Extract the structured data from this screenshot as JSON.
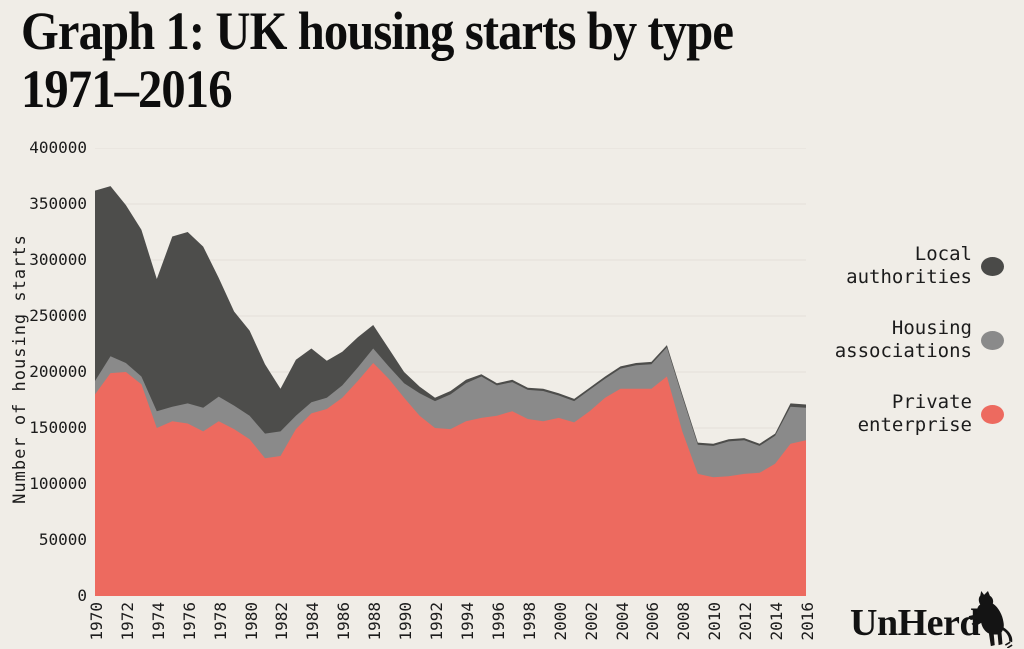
{
  "title": {
    "line1": "Graph 1: UK housing starts by type",
    "line2": "1971–2016"
  },
  "y_axis": {
    "label": "Number of housing starts",
    "ticks": [
      0,
      50000,
      100000,
      150000,
      200000,
      250000,
      300000,
      350000,
      400000
    ],
    "max": 400000
  },
  "x_axis": {
    "tick_years": [
      1970,
      1972,
      1974,
      1976,
      1978,
      1980,
      1982,
      1984,
      1986,
      1988,
      1990,
      1992,
      1994,
      1996,
      1998,
      2000,
      2002,
      2004,
      2006,
      2008,
      2010,
      2012,
      2014,
      2016
    ]
  },
  "legend": [
    {
      "line1": "Local",
      "line2": "authorities",
      "color": "#4a4a48"
    },
    {
      "line1": "Housing",
      "line2": "associations",
      "color": "#8a8a8a"
    },
    {
      "line1": "Private",
      "line2": "enterprise",
      "color": "#ed6a5f"
    }
  ],
  "logo": {
    "text": "UnHerd"
  },
  "colors": {
    "background": "#f0ede7",
    "gridline": "#e7e4dd",
    "local_authorities": "#4d4d4b",
    "housing_associations": "#8a8a8a",
    "private_enterprise": "#ed6a5f"
  },
  "chart_data": {
    "type": "area",
    "stacked": true,
    "title": "Graph 1: UK housing starts by type 1971–2016",
    "xlabel": "",
    "ylabel": "Number of housing starts",
    "ylim": [
      0,
      400000
    ],
    "grid": true,
    "legend_position": "right",
    "x": [
      1970,
      1971,
      1972,
      1973,
      1974,
      1975,
      1976,
      1977,
      1978,
      1979,
      1980,
      1981,
      1982,
      1983,
      1984,
      1985,
      1986,
      1987,
      1988,
      1989,
      1990,
      1991,
      1992,
      1993,
      1994,
      1995,
      1996,
      1997,
      1998,
      1999,
      2000,
      2001,
      2002,
      2003,
      2004,
      2005,
      2006,
      2007,
      2008,
      2009,
      2010,
      2011,
      2012,
      2013,
      2014,
      2015,
      2016
    ],
    "series": [
      {
        "name": "Private enterprise",
        "color": "#ed6a5f",
        "values": [
          180000,
          199000,
          200000,
          189000,
          150000,
          156000,
          154000,
          147000,
          156000,
          149000,
          140000,
          123000,
          125000,
          149000,
          163000,
          167000,
          177000,
          192000,
          208000,
          194000,
          177000,
          161000,
          150000,
          149000,
          156000,
          159000,
          161000,
          165000,
          158000,
          156000,
          159000,
          155000,
          165000,
          177000,
          185000,
          185000,
          185000,
          196000,
          147000,
          109000,
          106000,
          107000,
          109000,
          110000,
          118000,
          136000,
          139000
        ]
      },
      {
        "name": "Housing associations",
        "color": "#8a8a8a",
        "values": [
          12000,
          15000,
          8000,
          7000,
          15000,
          13000,
          18000,
          21000,
          22000,
          21000,
          21000,
          22000,
          22000,
          12000,
          10000,
          10000,
          11000,
          12000,
          13000,
          11000,
          13000,
          20000,
          24000,
          31000,
          34000,
          37000,
          27000,
          26000,
          26000,
          27000,
          20000,
          19000,
          19000,
          17000,
          18000,
          21000,
          22000,
          26000,
          31000,
          26000,
          28000,
          31000,
          30000,
          24000,
          25000,
          33000,
          29000
        ]
      },
      {
        "name": "Local authorities",
        "color": "#4d4d4b",
        "values": [
          170000,
          152000,
          141000,
          131000,
          118000,
          152000,
          153000,
          144000,
          106000,
          84000,
          76000,
          62000,
          38000,
          50000,
          48000,
          33000,
          30000,
          27000,
          21000,
          16000,
          10000,
          6000,
          3000,
          3000,
          3000,
          2000,
          2000,
          2000,
          2000,
          2000,
          2000,
          2000,
          2000,
          2000,
          2000,
          2000,
          2000,
          2000,
          2000,
          2000,
          2000,
          2000,
          2000,
          2000,
          2000,
          3000,
          3000
        ]
      }
    ]
  }
}
